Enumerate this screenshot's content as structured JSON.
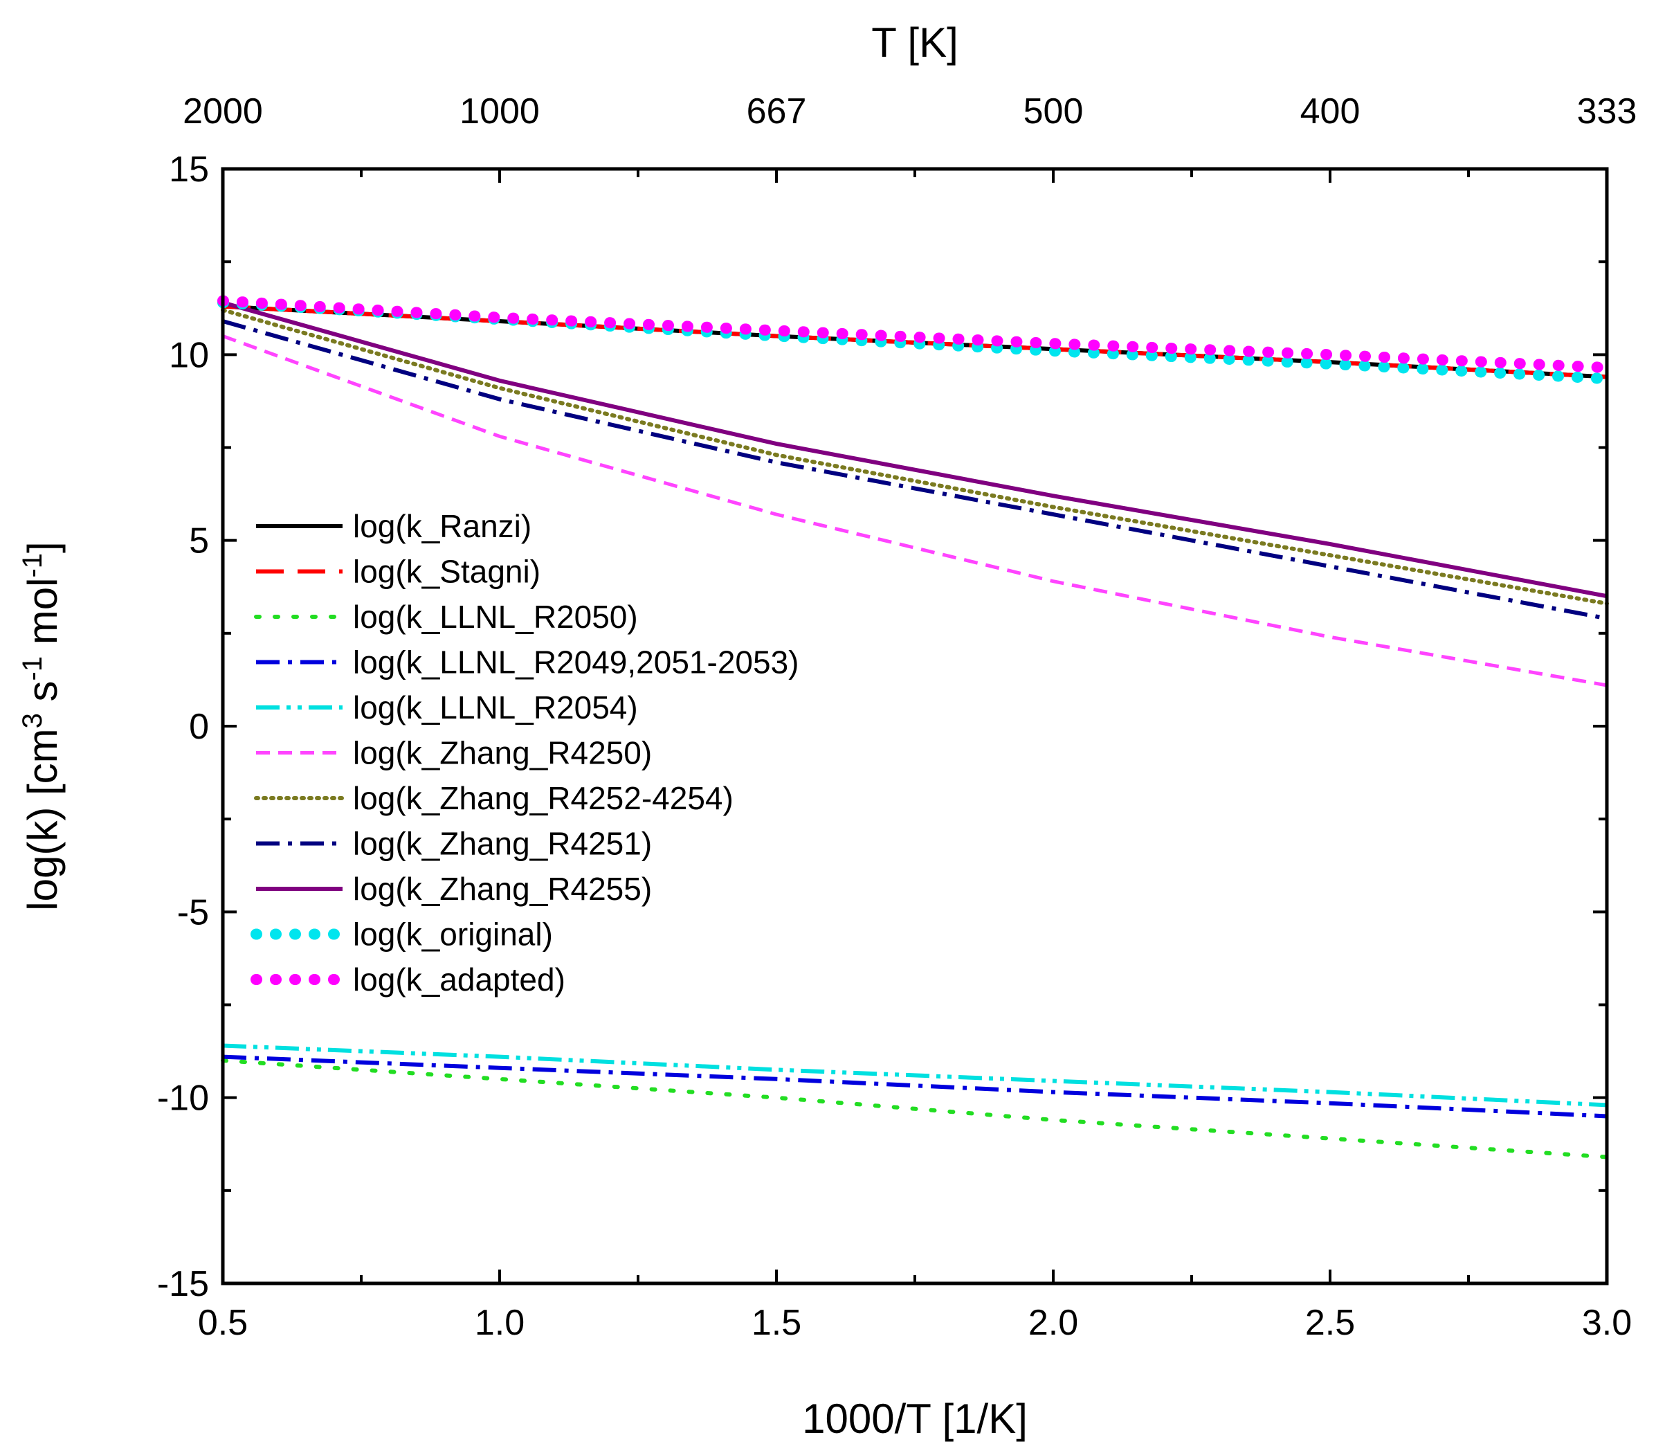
{
  "chart_data": {
    "type": "line",
    "title": "",
    "xlabel": "1000/T [1/K]",
    "ylabel": "log(k) [cm3 s-1 mol-1]",
    "ylabel_parts": {
      "base1": "log(k) [cm",
      "sup1": "3",
      "base2": " s",
      "sup2": "-1",
      "base3": " mol",
      "sup3": "-1",
      "base4": "]"
    },
    "top_xlabel": "T [K]",
    "xlim": [
      0.5,
      3.0
    ],
    "ylim": [
      -15,
      15
    ],
    "x_ticks": [
      {
        "value": 0.5,
        "label": "0.5"
      },
      {
        "value": 1.0,
        "label": "1.0"
      },
      {
        "value": 1.5,
        "label": "1.5"
      },
      {
        "value": 2.0,
        "label": "2.0"
      },
      {
        "value": 2.5,
        "label": "2.5"
      },
      {
        "value": 3.0,
        "label": "3.0"
      }
    ],
    "y_ticks": [
      {
        "value": 15,
        "label": "15"
      },
      {
        "value": 10,
        "label": "10"
      },
      {
        "value": 5,
        "label": "5"
      },
      {
        "value": 0,
        "label": "0"
      },
      {
        "value": -5,
        "label": "-5"
      },
      {
        "value": -10,
        "label": "-10"
      },
      {
        "value": -15,
        "label": "-15"
      }
    ],
    "top_ticks": [
      {
        "value": 0.5,
        "label": "2000"
      },
      {
        "value": 1.0,
        "label": "1000"
      },
      {
        "value": 1.5,
        "label": "667"
      },
      {
        "value": 2.0,
        "label": "500"
      },
      {
        "value": 2.5,
        "label": "400"
      },
      {
        "value": 3.0,
        "label": "333"
      }
    ],
    "legend_position": "center-left",
    "grid": false,
    "series": [
      {
        "name": "log(k_Ranzi)",
        "color": "#000000",
        "style": "solid",
        "x": [
          0.5,
          1.0,
          1.5,
          2.0,
          2.5,
          3.0
        ],
        "y": [
          11.3,
          10.9,
          10.5,
          10.15,
          9.8,
          9.4
        ]
      },
      {
        "name": "log(k_Stagni)",
        "color": "#ff0000",
        "style": "dash",
        "x": [
          0.5,
          1.0,
          1.5,
          2.0,
          2.5,
          3.0
        ],
        "y": [
          11.3,
          10.9,
          10.5,
          10.15,
          9.8,
          9.4
        ]
      },
      {
        "name": "log(k_LLNL_R2050)",
        "color": "#22dd22",
        "style": "dot",
        "x": [
          0.5,
          1.0,
          1.5,
          2.0,
          2.5,
          3.0
        ],
        "y": [
          -9.0,
          -9.5,
          -10.0,
          -10.6,
          -11.1,
          -11.6
        ]
      },
      {
        "name": "log(k_LLNL_R2049,2051-2053)",
        "color": "#0000dd",
        "style": "dashdot",
        "x": [
          0.5,
          1.0,
          1.5,
          2.0,
          2.5,
          3.0
        ],
        "y": [
          -8.9,
          -9.2,
          -9.5,
          -9.85,
          -10.15,
          -10.5
        ]
      },
      {
        "name": "log(k_LLNL_R2054)",
        "color": "#00e0e0",
        "style": "dashdotdot",
        "x": [
          0.5,
          1.0,
          1.5,
          2.0,
          2.5,
          3.0
        ],
        "y": [
          -8.6,
          -8.9,
          -9.25,
          -9.55,
          -9.85,
          -10.2
        ]
      },
      {
        "name": "log(k_Zhang_R4250)",
        "color": "#ff44ff",
        "style": "shortdash",
        "x": [
          0.5,
          1.0,
          1.5,
          2.0,
          2.5,
          3.0
        ],
        "y": [
          10.5,
          7.8,
          5.7,
          3.9,
          2.4,
          1.1
        ]
      },
      {
        "name": "log(k_Zhang_R4252-4254)",
        "color": "#7a7a20",
        "style": "shortdot",
        "x": [
          0.5,
          1.0,
          1.5,
          2.0,
          2.5,
          3.0
        ],
        "y": [
          11.2,
          9.1,
          7.3,
          5.9,
          4.6,
          3.3
        ]
      },
      {
        "name": "log(k_Zhang_R4251)",
        "color": "#000080",
        "style": "dashdot",
        "x": [
          0.5,
          1.0,
          1.5,
          2.0,
          2.5,
          3.0
        ],
        "y": [
          10.9,
          8.8,
          7.1,
          5.7,
          4.3,
          2.9
        ]
      },
      {
        "name": "log(k_Zhang_R4255)",
        "color": "#800080",
        "style": "solid",
        "x": [
          0.5,
          1.0,
          1.5,
          2.0,
          2.5,
          3.0
        ],
        "y": [
          11.4,
          9.3,
          7.6,
          6.2,
          4.9,
          3.5
        ]
      },
      {
        "name": "log(k_original)",
        "color": "#00e5ee",
        "style": "bigdot",
        "x": [
          0.5,
          1.0,
          1.5,
          2.0,
          2.5,
          3.0
        ],
        "y": [
          11.4,
          10.95,
          10.5,
          10.1,
          9.75,
          9.35
        ]
      },
      {
        "name": "log(k_adapted)",
        "color": "#ff00ff",
        "style": "bigdot",
        "x": [
          0.5,
          1.0,
          1.5,
          2.0,
          2.5,
          3.0
        ],
        "y": [
          11.45,
          11.0,
          10.65,
          10.3,
          10.0,
          9.65
        ]
      }
    ]
  }
}
